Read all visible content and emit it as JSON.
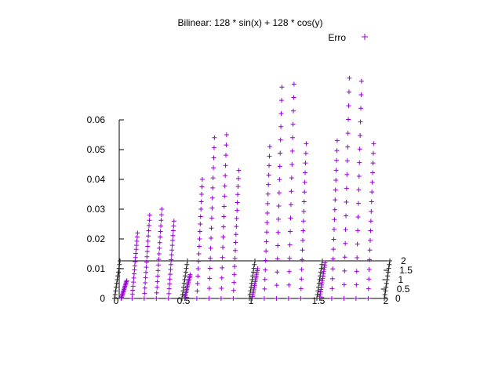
{
  "chart_data": {
    "type": "scatter",
    "subtype": "3d-splot",
    "title": "Bilinear: 128 * sin(x) + 128 * cos(y)",
    "xlabel": "",
    "ylabel": "",
    "zlabel": "",
    "xlim": [
      0,
      2
    ],
    "ylim": [
      0,
      2
    ],
    "zlim": [
      0,
      0.06
    ],
    "x_ticks": [
      "0",
      "0.5",
      "1",
      "1.5",
      "2"
    ],
    "y_ticks": [
      "0",
      "0.5",
      "1",
      "1.5",
      "2"
    ],
    "z_ticks": [
      "0",
      "0.01",
      "0.02",
      "0.03",
      "0.04",
      "0.05",
      "0.06"
    ],
    "grid": false,
    "legend_position": "top-right",
    "series": [
      {
        "name": "Erro",
        "color": "#9400d3",
        "marker": "plus",
        "columns": [
          {
            "x": 0.05,
            "zmax": 0.006
          },
          {
            "x": 0.13,
            "zmax": 0.022
          },
          {
            "x": 0.22,
            "zmax": 0.028
          },
          {
            "x": 0.31,
            "zmax": 0.03
          },
          {
            "x": 0.4,
            "zmax": 0.026
          },
          {
            "x": 0.52,
            "zmax": 0.008
          },
          {
            "x": 0.61,
            "zmax": 0.04
          },
          {
            "x": 0.7,
            "zmax": 0.054
          },
          {
            "x": 0.79,
            "zmax": 0.055
          },
          {
            "x": 0.88,
            "zmax": 0.043
          },
          {
            "x": 1.02,
            "zmax": 0.01
          },
          {
            "x": 1.11,
            "zmax": 0.051
          },
          {
            "x": 1.2,
            "zmax": 0.071
          },
          {
            "x": 1.29,
            "zmax": 0.072
          },
          {
            "x": 1.38,
            "zmax": 0.052
          },
          {
            "x": 1.52,
            "zmax": 0.012
          },
          {
            "x": 1.61,
            "zmax": 0.053
          },
          {
            "x": 1.7,
            "zmax": 0.074
          },
          {
            "x": 1.79,
            "zmax": 0.073
          },
          {
            "x": 1.88,
            "zmax": 0.052
          }
        ]
      }
    ]
  }
}
